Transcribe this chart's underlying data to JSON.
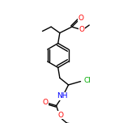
{
  "background_color": "#ffffff",
  "bond_color": "#000000",
  "atom_colors": {
    "O": "#ff0000",
    "N": "#0000ff",
    "Cl": "#00aa00",
    "C": "#000000"
  },
  "font_size_atom": 6.5,
  "font_size_small": 5.5,
  "line_width": 1.0
}
